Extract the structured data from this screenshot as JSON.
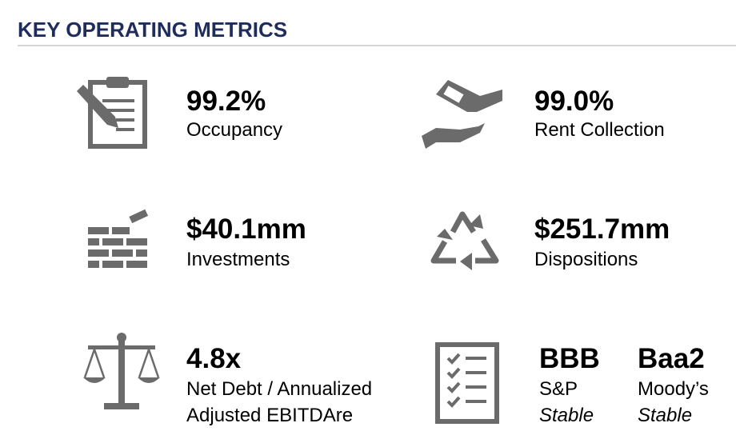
{
  "header": {
    "title": "KEY OPERATING METRICS"
  },
  "metrics": [
    {
      "value": "99.2%",
      "label": "Occupancy"
    },
    {
      "value": "99.0%",
      "label": "Rent Collection"
    },
    {
      "value": "$40.1mm",
      "label": "Investments"
    },
    {
      "value": "$251.7mm",
      "label": "Dispositions"
    },
    {
      "value": "4.8x",
      "label_lines": [
        "Net Debt / Annualized",
        "Adjusted EBITDAre"
      ]
    }
  ],
  "ratings": [
    {
      "rating": "BBB",
      "agency": "S&P",
      "outlook": "Stable"
    },
    {
      "rating": "Baa2",
      "agency": "Moody’s",
      "outlook": "Stable"
    }
  ]
}
